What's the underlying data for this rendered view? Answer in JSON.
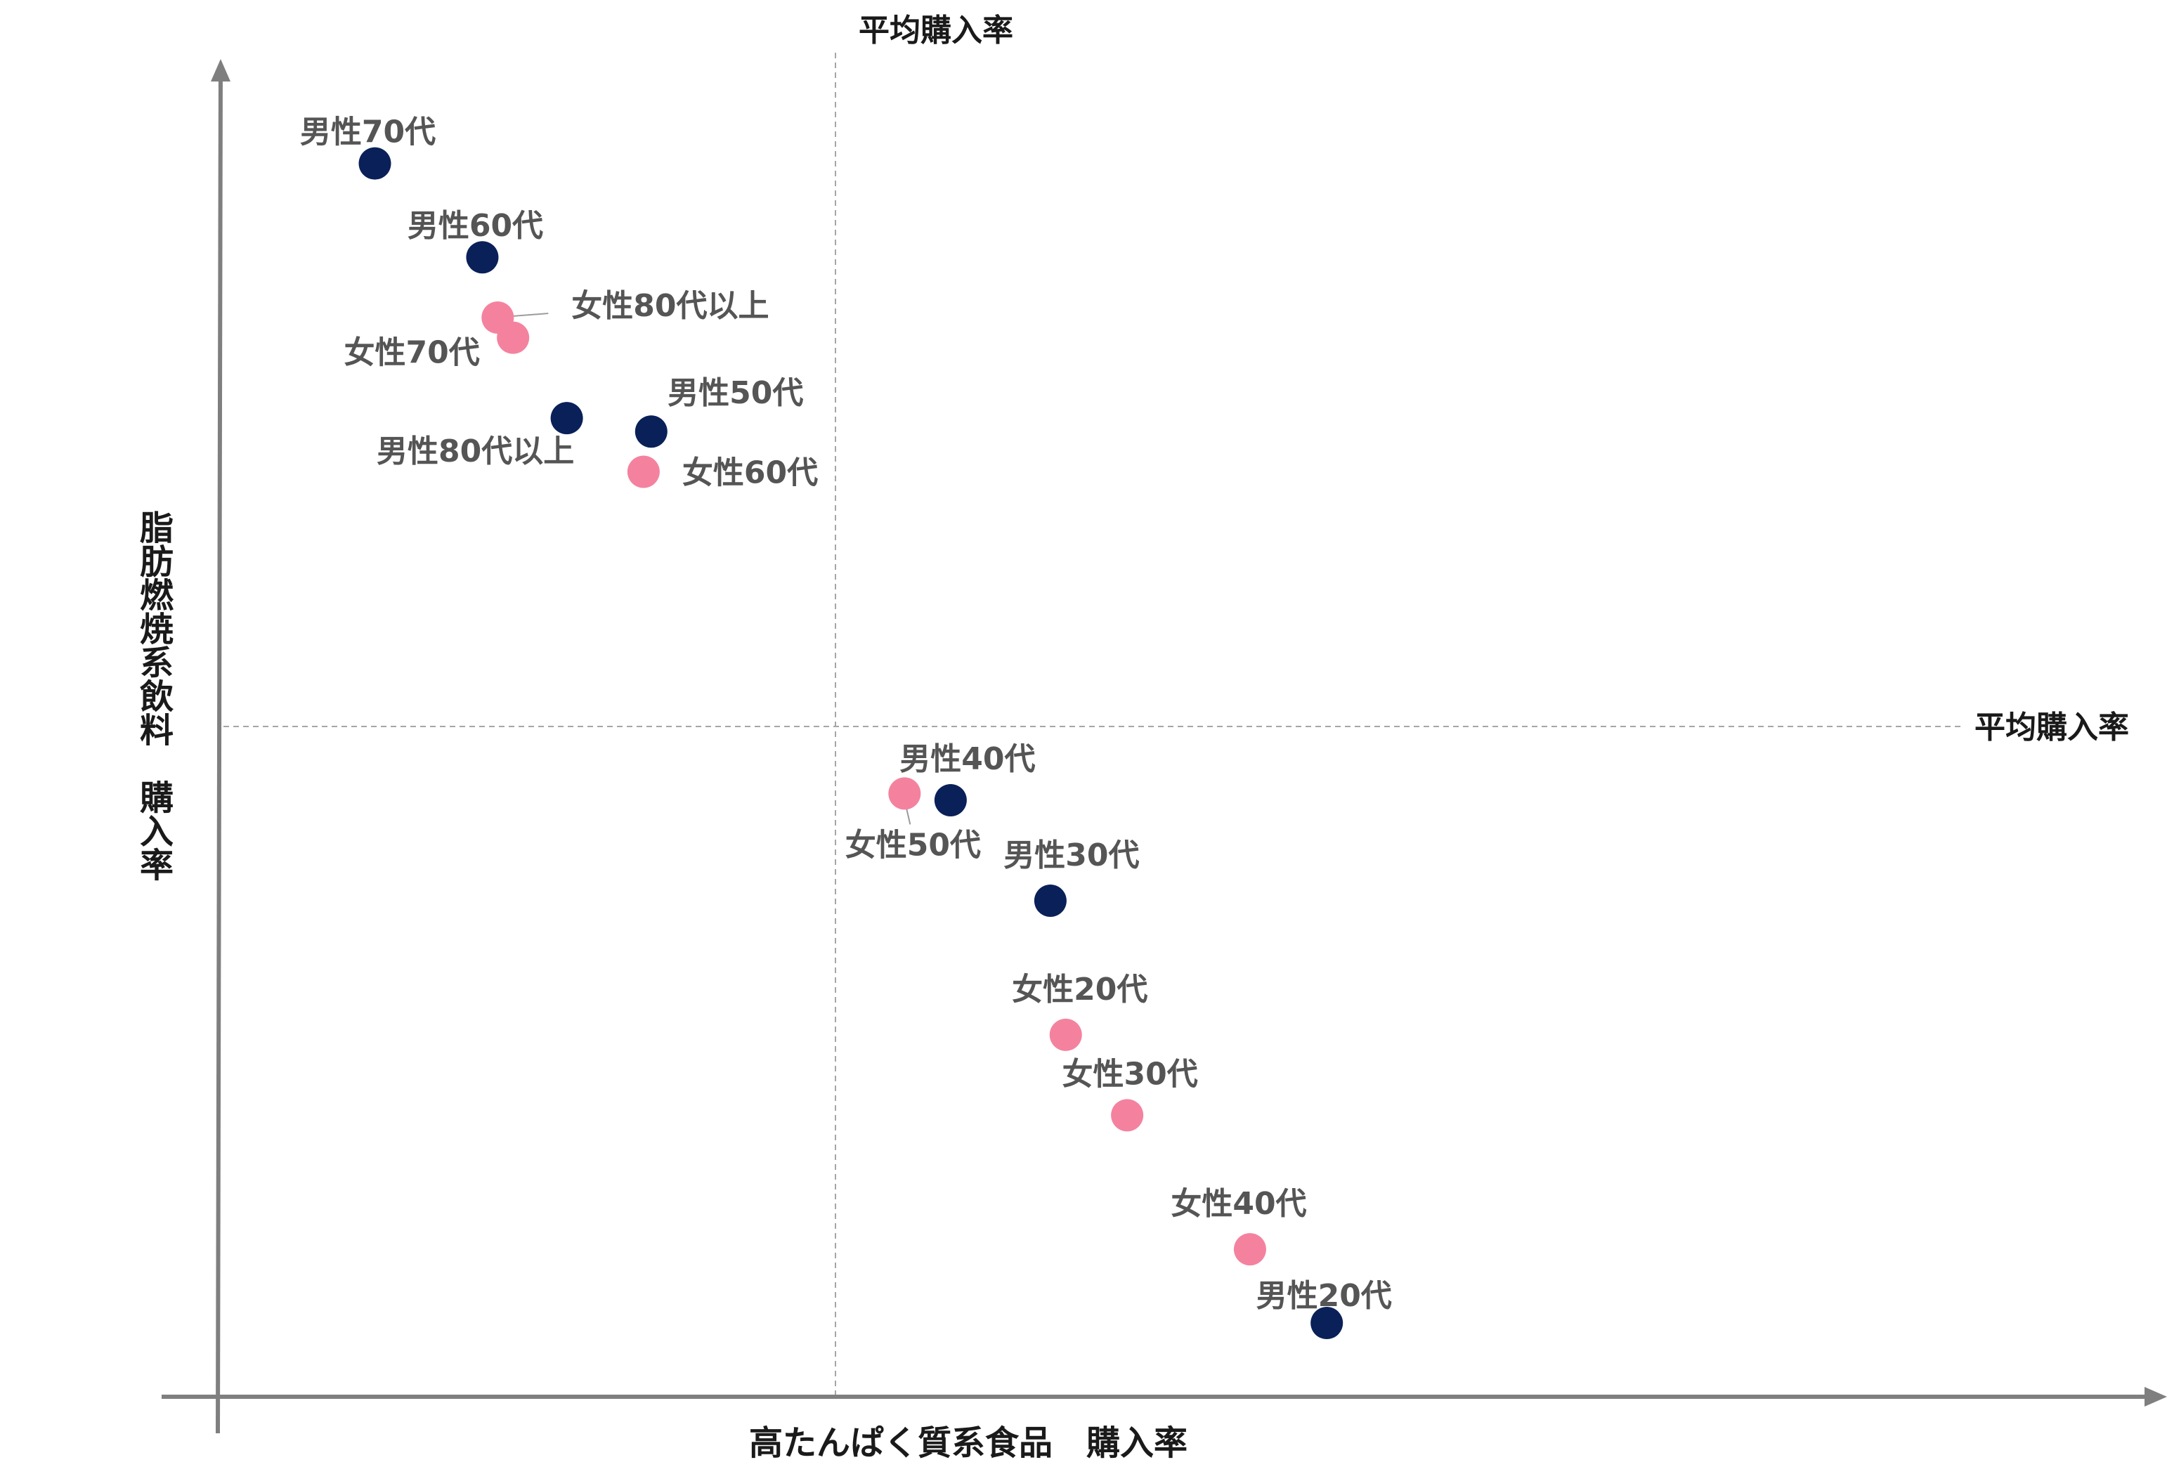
{
  "chart_data": {
    "type": "scatter",
    "xlabel": "高たんぱく質系食品　購入率",
    "ylabel": "脂肪燃焼系飲料　購入率",
    "avg_x_label": "平均購入率",
    "avg_y_label": "平均購入率",
    "xlim": [
      0,
      100
    ],
    "ylim": [
      0,
      100
    ],
    "avg_x": 40,
    "avg_y": 50,
    "grid": false,
    "colors": {
      "male": "#0a2058",
      "female": "#f4829e",
      "axis": "#7f7f7f",
      "avg_line": "#a6a6a6"
    },
    "points": [
      {
        "group": "male",
        "label": "男性70代",
        "x": 10,
        "y": 92
      },
      {
        "group": "male",
        "label": "男性60代",
        "x": 17,
        "y": 85
      },
      {
        "group": "female",
        "label": "女性80代以上",
        "x": 18,
        "y": 80.5
      },
      {
        "group": "female",
        "label": "女性70代",
        "x": 19,
        "y": 79
      },
      {
        "group": "male",
        "label": "男性80代以上",
        "x": 22.5,
        "y": 73
      },
      {
        "group": "male",
        "label": "男性50代",
        "x": 28,
        "y": 72
      },
      {
        "group": "female",
        "label": "女性60代",
        "x": 27.5,
        "y": 69
      },
      {
        "group": "female",
        "label": "女性50代",
        "x": 44.5,
        "y": 45
      },
      {
        "group": "male",
        "label": "男性40代",
        "x": 47.5,
        "y": 44.5
      },
      {
        "group": "male",
        "label": "男性30代",
        "x": 54,
        "y": 37
      },
      {
        "group": "female",
        "label": "女性20代",
        "x": 55,
        "y": 27
      },
      {
        "group": "female",
        "label": "女性30代",
        "x": 59,
        "y": 21
      },
      {
        "group": "female",
        "label": "女性40代",
        "x": 67,
        "y": 11
      },
      {
        "group": "male",
        "label": "男性20代",
        "x": 72,
        "y": 5.5
      }
    ]
  }
}
